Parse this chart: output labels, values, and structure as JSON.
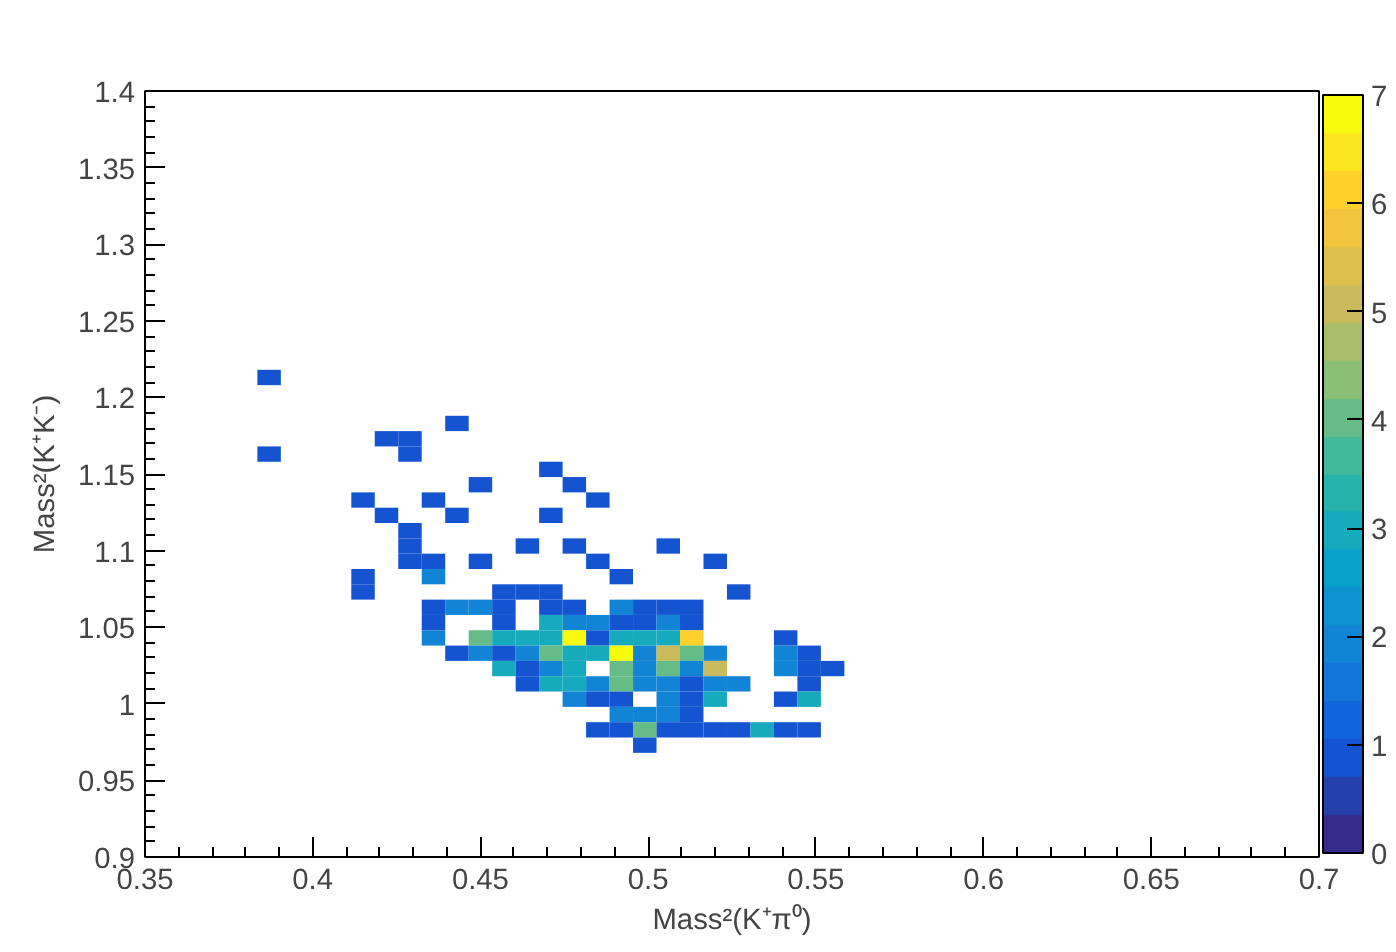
{
  "chart_data": {
    "type": "scatter",
    "marker": "square",
    "xlabel": "Mass²(K⁺π⁰)",
    "ylabel": "Mass²(K⁺K⁻)",
    "x": [
      0.387,
      0.443,
      0.422,
      0.429,
      0.387,
      0.429,
      0.471,
      0.45,
      0.478,
      0.415,
      0.436,
      0.485,
      0.422,
      0.443,
      0.471,
      0.429,
      0.429,
      0.464,
      0.478,
      0.506,
      0.429,
      0.436,
      0.45,
      0.485,
      0.52,
      0.415,
      0.436,
      0.492,
      0.415,
      0.457,
      0.464,
      0.471,
      0.527,
      0.436,
      0.443,
      0.45,
      0.457,
      0.471,
      0.478,
      0.492,
      0.499,
      0.506,
      0.513,
      0.436,
      0.457,
      0.471,
      0.478,
      0.485,
      0.492,
      0.499,
      0.506,
      0.513,
      0.436,
      0.45,
      0.457,
      0.464,
      0.471,
      0.478,
      0.485,
      0.492,
      0.499,
      0.506,
      0.513,
      0.541,
      0.443,
      0.45,
      0.457,
      0.464,
      0.471,
      0.478,
      0.485,
      0.492,
      0.499,
      0.506,
      0.513,
      0.52,
      0.541,
      0.548,
      0.457,
      0.464,
      0.471,
      0.478,
      0.492,
      0.499,
      0.506,
      0.513,
      0.52,
      0.541,
      0.548,
      0.555,
      0.464,
      0.471,
      0.478,
      0.485,
      0.492,
      0.499,
      0.506,
      0.513,
      0.52,
      0.527,
      0.548,
      0.478,
      0.485,
      0.492,
      0.506,
      0.513,
      0.52,
      0.541,
      0.548,
      0.492,
      0.499,
      0.506,
      0.513,
      0.485,
      0.492,
      0.499,
      0.506,
      0.513,
      0.52,
      0.527,
      0.534,
      0.541,
      0.548,
      0.499
    ],
    "values": [
      1.213,
      1.183,
      1.173,
      1.173,
      1.163,
      1.163,
      1.153,
      1.143,
      1.143,
      1.133,
      1.133,
      1.133,
      1.123,
      1.123,
      1.123,
      1.113,
      1.103,
      1.103,
      1.103,
      1.103,
      1.093,
      1.093,
      1.093,
      1.093,
      1.093,
      1.083,
      1.083,
      1.083,
      1.073,
      1.073,
      1.073,
      1.073,
      1.073,
      1.063,
      1.063,
      1.063,
      1.063,
      1.063,
      1.063,
      1.063,
      1.063,
      1.063,
      1.063,
      1.053,
      1.053,
      1.053,
      1.053,
      1.053,
      1.053,
      1.053,
      1.053,
      1.053,
      1.043,
      1.043,
      1.043,
      1.043,
      1.043,
      1.043,
      1.043,
      1.043,
      1.043,
      1.043,
      1.043,
      1.043,
      1.033,
      1.033,
      1.033,
      1.033,
      1.033,
      1.033,
      1.033,
      1.033,
      1.033,
      1.033,
      1.033,
      1.033,
      1.033,
      1.033,
      1.023,
      1.023,
      1.023,
      1.023,
      1.023,
      1.023,
      1.023,
      1.023,
      1.023,
      1.023,
      1.023,
      1.023,
      1.013,
      1.013,
      1.013,
      1.013,
      1.013,
      1.013,
      1.013,
      1.013,
      1.013,
      1.013,
      1.013,
      1.003,
      1.003,
      1.003,
      1.003,
      1.003,
      1.003,
      1.003,
      1.003,
      0.993,
      0.993,
      0.993,
      0.993,
      0.983,
      0.983,
      0.983,
      0.983,
      0.983,
      0.983,
      0.983,
      0.983,
      0.983,
      0.983,
      0.973
    ],
    "cvalues": [
      1,
      1,
      1,
      1,
      1,
      1,
      1,
      1,
      1,
      1,
      1,
      1,
      1,
      1,
      1,
      1,
      1,
      1,
      1,
      1,
      1,
      1,
      1,
      1,
      1,
      1,
      2,
      1,
      1,
      1,
      1,
      1,
      1,
      1,
      2,
      2,
      1,
      1,
      1,
      2,
      1,
      1,
      1,
      1,
      1,
      3,
      2,
      2,
      1,
      1,
      2,
      1,
      2,
      4,
      3,
      3,
      3,
      7,
      1,
      3,
      3,
      3,
      6,
      1,
      1,
      2,
      1,
      2,
      4,
      3,
      3,
      7,
      2,
      5,
      4,
      2,
      2,
      1,
      3,
      1,
      2,
      3,
      4,
      2,
      4,
      2,
      5,
      2,
      1,
      1,
      1,
      3,
      3,
      2,
      4,
      2,
      2,
      1,
      2,
      2,
      1,
      2,
      1,
      1,
      2,
      1,
      3,
      1,
      3,
      2,
      2,
      2,
      1,
      1,
      1,
      4,
      1,
      1,
      1,
      1,
      3,
      1,
      1,
      1
    ],
    "xlim": [
      0.35,
      0.7
    ],
    "xticks": [
      0.35,
      0.4,
      0.45,
      0.5,
      0.55,
      0.6,
      0.65,
      0.7
    ],
    "ylim": [
      0.9,
      1.4
    ],
    "yticks": [
      0.9,
      0.95,
      1,
      1.05,
      1.1,
      1.15,
      1.2,
      1.25,
      1.3,
      1.35,
      1.4
    ],
    "clim": [
      0,
      7
    ],
    "cticks": [
      0,
      1,
      2,
      3,
      4,
      5,
      6,
      7
    ],
    "grid": false
  }
}
